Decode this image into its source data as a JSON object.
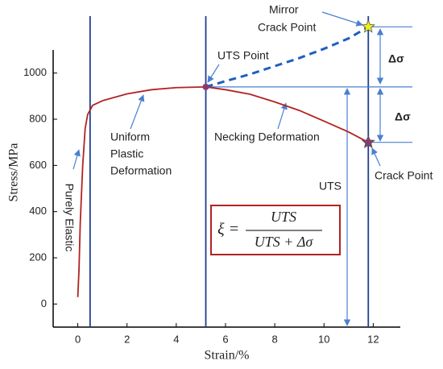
{
  "chart_data": {
    "type": "line",
    "xlabel": "Strain/%",
    "ylabel": "Stress/MPa",
    "xlim": [
      -1,
      13.1
    ],
    "ylim": [
      -100,
      1100
    ],
    "xticks": [
      0,
      2,
      4,
      6,
      8,
      10,
      12
    ],
    "yticks": [
      0,
      200,
      400,
      600,
      800,
      1000
    ],
    "series": [
      {
        "color": "#b22222",
        "dash": false,
        "x": [
          0,
          0.05,
          0.1,
          0.2,
          0.3,
          0.4,
          0.6,
          1,
          2,
          3,
          4,
          5.2,
          6,
          7,
          8,
          9,
          10,
          11,
          11.8
        ],
        "values": [
          30,
          150,
          350,
          600,
          760,
          820,
          860,
          880,
          910,
          928,
          937,
          940,
          928,
          908,
          875,
          838,
          792,
          745,
          700
        ]
      },
      {
        "color": "#1f5fbf",
        "dash": true,
        "x": [
          5.2,
          6,
          7,
          8,
          9,
          10,
          11,
          11.8
        ],
        "values": [
          940,
          965,
          995,
          1030,
          1065,
          1105,
          1150,
          1200
        ]
      }
    ],
    "vlines": [
      0.5,
      5.2,
      11.8
    ],
    "hlines": [
      940,
      1200,
      700
    ],
    "line_color": "#1f3f8f",
    "annotations": [
      "Mirror",
      "Crack Point",
      "UTS Point",
      "Δσ",
      "Δσ",
      "Necking Deformation",
      "Uniform",
      "Plastic",
      "Deformation",
      "Purely Elastic",
      "Crack Point",
      "UTS"
    ],
    "formula": {
      "lhs": "ξ =",
      "numerator": "UTS",
      "denominator": "UTS + Δσ"
    }
  }
}
